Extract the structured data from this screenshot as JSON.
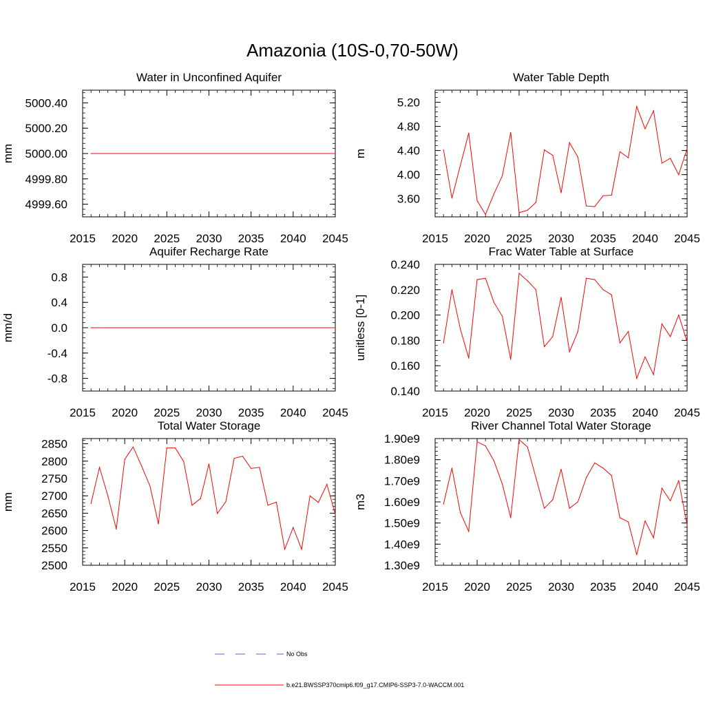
{
  "figure_title": "Amazonia (10S-0,70-50W)",
  "legend": {
    "entries": [
      {
        "label": "No Obs",
        "color": "#5b63c7",
        "style": "dashed"
      },
      {
        "label": "b.e21.BWSSP370cmip6.f09_g17.CMIP6-SSP3-7.0-WACCM.001",
        "color": "#ff0000",
        "style": "solid"
      }
    ]
  },
  "chart_data": [
    {
      "type": "line",
      "title": "Water in Unconfined Aquifer",
      "xlabel": "",
      "ylabel": "mm",
      "xlim": [
        2015,
        2045
      ],
      "ylim": [
        4999.5,
        5000.5
      ],
      "x_ticks": [
        2015,
        2020,
        2025,
        2030,
        2035,
        2040,
        2045
      ],
      "x_tick_labels": [
        "2015",
        "2020",
        "2025",
        "2030",
        "2035",
        "2040",
        "2045"
      ],
      "y_ticks": [
        4999.6,
        4999.8,
        5000.0,
        5000.2,
        5000.4
      ],
      "y_tick_labels": [
        "4999.60",
        "4999.80",
        "5000.00",
        "5000.20",
        "5000.40"
      ],
      "series": [
        {
          "name": "b.e21.BWSSP370cmip6.f09_g17.CMIP6-SSP3-7.0-WACCM.001",
          "color": "#ff0000",
          "x": [
            2016,
            2045
          ],
          "values": [
            5000.0,
            5000.0
          ]
        }
      ]
    },
    {
      "type": "line",
      "title": "Water Table Depth",
      "xlabel": "",
      "ylabel": "m",
      "xlim": [
        2015,
        2045
      ],
      "ylim": [
        3.3,
        5.4
      ],
      "x_ticks": [
        2015,
        2020,
        2025,
        2030,
        2035,
        2040,
        2045
      ],
      "x_tick_labels": [
        "2015",
        "2020",
        "2025",
        "2030",
        "2035",
        "2040",
        "2045"
      ],
      "y_ticks": [
        3.6,
        4.0,
        4.4,
        4.8,
        5.2
      ],
      "y_tick_labels": [
        "3.60",
        "4.00",
        "4.40",
        "4.80",
        "5.20"
      ],
      "series": [
        {
          "name": "b.e21.BWSSP370cmip6.f09_g17.CMIP6-SSP3-7.0-WACCM.001",
          "color": "#ff0000",
          "x": [
            2016,
            2017,
            2018,
            2019,
            2020,
            2021,
            2022,
            2023,
            2024,
            2025,
            2026,
            2027,
            2028,
            2029,
            2030,
            2031,
            2032,
            2033,
            2034,
            2035,
            2036,
            2037,
            2038,
            2039,
            2040,
            2041,
            2042,
            2043,
            2044,
            2045
          ],
          "values": [
            4.41,
            3.61,
            4.15,
            4.69,
            3.57,
            3.34,
            3.68,
            3.98,
            4.7,
            3.37,
            3.41,
            3.54,
            4.41,
            4.32,
            3.7,
            4.53,
            4.29,
            3.48,
            3.47,
            3.65,
            3.66,
            4.38,
            4.28,
            5.13,
            4.76,
            5.06,
            4.19,
            4.27,
            4.0,
            4.43
          ]
        }
      ]
    },
    {
      "type": "line",
      "title": "Aquifer Recharge Rate",
      "xlabel": "",
      "ylabel": "mm/d",
      "xlim": [
        2015,
        2045
      ],
      "ylim": [
        -1.0,
        1.0
      ],
      "x_ticks": [
        2015,
        2020,
        2025,
        2030,
        2035,
        2040,
        2045
      ],
      "x_tick_labels": [
        "2015",
        "2020",
        "2025",
        "2030",
        "2035",
        "2040",
        "2045"
      ],
      "y_ticks": [
        -0.8,
        -0.4,
        0.0,
        0.4,
        0.8
      ],
      "y_tick_labels": [
        "-0.8",
        "-0.4",
        "0.0",
        "0.4",
        "0.8"
      ],
      "series": [
        {
          "name": "b.e21.BWSSP370cmip6.f09_g17.CMIP6-SSP3-7.0-WACCM.001",
          "color": "#ff0000",
          "x": [
            2016,
            2045
          ],
          "values": [
            0.0,
            0.0
          ]
        }
      ]
    },
    {
      "type": "line",
      "title": "Frac Water Table at Surface",
      "xlabel": "",
      "ylabel": "unitless [0-1]",
      "xlim": [
        2015,
        2045
      ],
      "ylim": [
        0.14,
        0.24
      ],
      "x_ticks": [
        2015,
        2020,
        2025,
        2030,
        2035,
        2040,
        2045
      ],
      "x_tick_labels": [
        "2015",
        "2020",
        "2025",
        "2030",
        "2035",
        "2040",
        "2045"
      ],
      "y_ticks": [
        0.14,
        0.16,
        0.18,
        0.2,
        0.22,
        0.24
      ],
      "y_tick_labels": [
        "0.140",
        "0.160",
        "0.180",
        "0.200",
        "0.220",
        "0.240"
      ],
      "series": [
        {
          "name": "b.e21.BWSSP370cmip6.f09_g17.CMIP6-SSP3-7.0-WACCM.001",
          "color": "#ff0000",
          "x": [
            2016,
            2017,
            2018,
            2019,
            2020,
            2021,
            2022,
            2023,
            2024,
            2025,
            2026,
            2027,
            2028,
            2029,
            2030,
            2031,
            2032,
            2033,
            2034,
            2035,
            2036,
            2037,
            2038,
            2039,
            2040,
            2041,
            2042,
            2043,
            2044,
            2045
          ],
          "values": [
            0.178,
            0.22,
            0.189,
            0.166,
            0.228,
            0.229,
            0.21,
            0.199,
            0.165,
            0.233,
            0.227,
            0.22,
            0.175,
            0.183,
            0.214,
            0.171,
            0.187,
            0.229,
            0.228,
            0.22,
            0.216,
            0.178,
            0.187,
            0.15,
            0.167,
            0.153,
            0.193,
            0.183,
            0.2,
            0.179
          ]
        }
      ]
    },
    {
      "type": "line",
      "title": "Total Water Storage",
      "xlabel": "",
      "ylabel": "mm",
      "xlim": [
        2015,
        2045
      ],
      "ylim": [
        2500,
        2865
      ],
      "x_ticks": [
        2015,
        2020,
        2025,
        2030,
        2035,
        2040,
        2045
      ],
      "x_tick_labels": [
        "2015",
        "2020",
        "2025",
        "2030",
        "2035",
        "2040",
        "2045"
      ],
      "y_ticks": [
        2500,
        2550,
        2600,
        2650,
        2700,
        2750,
        2800,
        2850
      ],
      "y_tick_labels": [
        "2500",
        "2550",
        "2600",
        "2650",
        "2700",
        "2750",
        "2800",
        "2850"
      ],
      "series": [
        {
          "name": "b.e21.BWSSP370cmip6.f09_g17.CMIP6-SSP3-7.0-WACCM.001",
          "color": "#ff0000",
          "x": [
            2016,
            2017,
            2018,
            2019,
            2020,
            2021,
            2022,
            2023,
            2024,
            2025,
            2026,
            2027,
            2028,
            2029,
            2030,
            2031,
            2032,
            2033,
            2034,
            2035,
            2036,
            2037,
            2038,
            2039,
            2040,
            2041,
            2042,
            2043,
            2044,
            2045
          ],
          "values": [
            2678,
            2782,
            2700,
            2604,
            2805,
            2841,
            2786,
            2728,
            2619,
            2838,
            2838,
            2799,
            2673,
            2692,
            2792,
            2649,
            2683,
            2808,
            2814,
            2779,
            2782,
            2673,
            2682,
            2546,
            2609,
            2546,
            2700,
            2681,
            2733,
            2647
          ]
        }
      ]
    },
    {
      "type": "line",
      "title": "River Channel Total Water Storage",
      "xlabel": "",
      "ylabel": "m3",
      "xlim": [
        2015,
        2045
      ],
      "ylim": [
        1300000000.0,
        1900000000.0
      ],
      "x_ticks": [
        2015,
        2020,
        2025,
        2030,
        2035,
        2040,
        2045
      ],
      "x_tick_labels": [
        "2015",
        "2020",
        "2025",
        "2030",
        "2035",
        "2040",
        "2045"
      ],
      "y_ticks": [
        1300000000.0,
        1400000000.0,
        1500000000.0,
        1600000000.0,
        1700000000.0,
        1800000000.0,
        1900000000.0
      ],
      "y_tick_labels": [
        "1.30e9",
        "1.40e9",
        "1.50e9",
        "1.60e9",
        "1.70e9",
        "1.80e9",
        "1.90e9"
      ],
      "series": [
        {
          "name": "b.e21.BWSSP370cmip6.f09_g17.CMIP6-SSP3-7.0-WACCM.001",
          "color": "#ff0000",
          "x": [
            2016,
            2017,
            2018,
            2019,
            2020,
            2021,
            2022,
            2023,
            2024,
            2025,
            2026,
            2027,
            2028,
            2029,
            2030,
            2031,
            2032,
            2033,
            2034,
            2035,
            2036,
            2037,
            2038,
            2039,
            2040,
            2041,
            2042,
            2043,
            2044,
            2045
          ],
          "values": [
            1590000000.0,
            1760000000.0,
            1550000000.0,
            1460000000.0,
            1885000000.0,
            1865000000.0,
            1795000000.0,
            1685000000.0,
            1525000000.0,
            1895000000.0,
            1860000000.0,
            1715000000.0,
            1570000000.0,
            1610000000.0,
            1755000000.0,
            1570000000.0,
            1600000000.0,
            1715000000.0,
            1785000000.0,
            1760000000.0,
            1725000000.0,
            1525000000.0,
            1505000000.0,
            1350000000.0,
            1510000000.0,
            1430000000.0,
            1665000000.0,
            1605000000.0,
            1700000000.0,
            1490000000.0
          ]
        }
      ]
    }
  ]
}
